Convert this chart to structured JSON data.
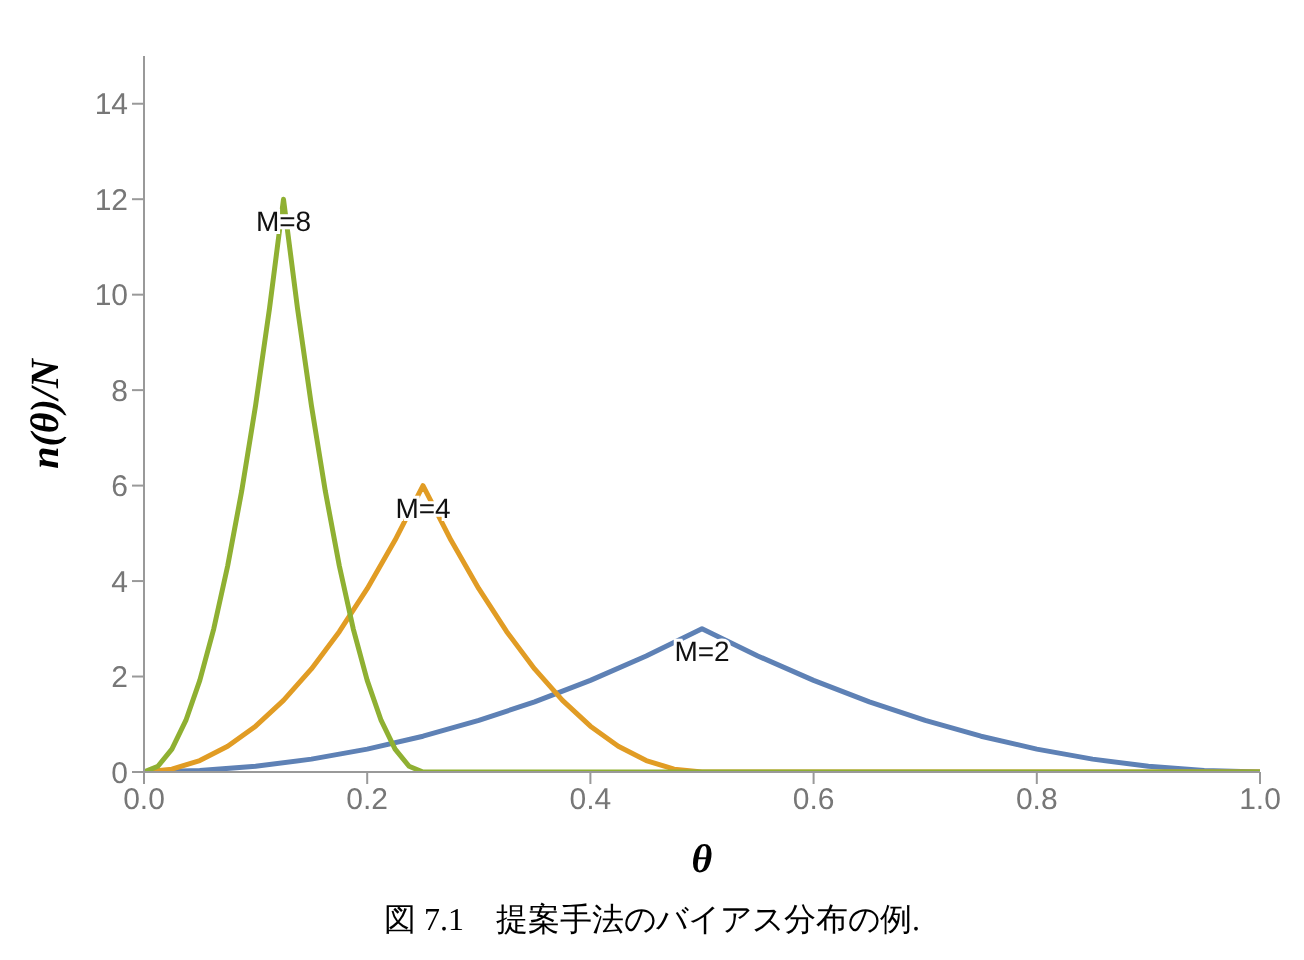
{
  "chart_data": {
    "type": "line",
    "xlabel": "θ",
    "ylabel": "n(θ)/N",
    "xlim": [
      0,
      1
    ],
    "xticks": [
      {
        "value": 0,
        "label": "0.0"
      },
      0.2,
      0.4,
      0.6,
      0.8,
      {
        "value": 1,
        "label": "1.0"
      }
    ],
    "ylim": [
      0,
      15
    ],
    "yticks": [
      0,
      2,
      4,
      6,
      8,
      10,
      12,
      14
    ],
    "grid": false,
    "legend": false,
    "marker": "none",
    "line_style": "solid",
    "annotations": [
      "図 7.1　提案手法のバイアス分布の例."
    ],
    "series": [
      {
        "name": "M=2",
        "color": "#5e81b5",
        "x": [
          0,
          0.05,
          0.1,
          0.15,
          0.2,
          0.25,
          0.3,
          0.35,
          0.4,
          0.45,
          0.5,
          0.55,
          0.6,
          0.65,
          0.7,
          0.75,
          0.8,
          0.85,
          0.9,
          0.95,
          1
        ],
        "values": [
          0,
          0.03,
          0.12,
          0.27,
          0.48,
          0.75,
          1.08,
          1.47,
          1.92,
          2.43,
          3,
          2.43,
          1.92,
          1.47,
          1.08,
          0.75,
          0.48,
          0.27,
          0.12,
          0.03,
          0
        ]
      },
      {
        "name": "M=4",
        "color": "#e19c24",
        "x": [
          0,
          0.025,
          0.05,
          0.075,
          0.1,
          0.125,
          0.15,
          0.175,
          0.2,
          0.225,
          0.25,
          0.275,
          0.3,
          0.325,
          0.35,
          0.375,
          0.4,
          0.425,
          0.45,
          0.475,
          0.5,
          1
        ],
        "values": [
          0,
          0.06,
          0.24,
          0.54,
          0.96,
          1.5,
          2.16,
          2.94,
          3.84,
          4.86,
          6,
          4.86,
          3.84,
          2.94,
          2.16,
          1.5,
          0.96,
          0.54,
          0.24,
          0.06,
          0,
          0
        ]
      },
      {
        "name": "M=8",
        "color": "#8fb032",
        "x": [
          0,
          0.0125,
          0.025,
          0.0375,
          0.05,
          0.0625,
          0.075,
          0.0875,
          0.1,
          0.1125,
          0.125,
          0.1375,
          0.15,
          0.1625,
          0.175,
          0.1875,
          0.2,
          0.2125,
          0.225,
          0.2375,
          0.25,
          1
        ],
        "values": [
          0,
          0.12,
          0.48,
          1.08,
          1.92,
          3,
          4.32,
          5.88,
          7.68,
          9.72,
          12,
          9.72,
          7.68,
          5.88,
          4.32,
          3,
          1.92,
          1.08,
          0.48,
          0.12,
          0,
          0
        ]
      }
    ]
  }
}
